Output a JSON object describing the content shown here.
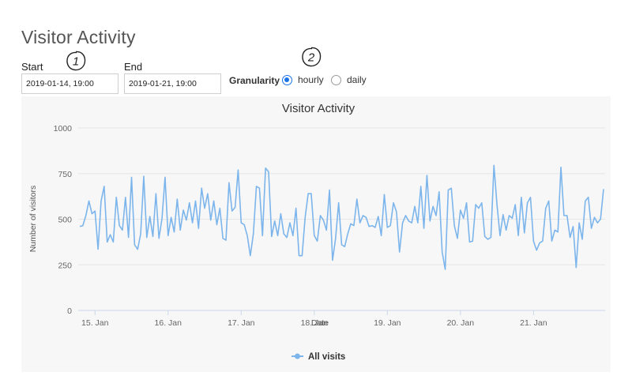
{
  "page": {
    "title": "Visitor Activity"
  },
  "controls": {
    "start_label": "Start",
    "start_value": "2019-01-14, 19:00",
    "end_label": "End",
    "end_value": "2019-01-21, 19:00",
    "granularity_label": "Granularity",
    "options": [
      {
        "label": "hourly",
        "checked": true
      },
      {
        "label": "daily",
        "checked": false
      }
    ],
    "callouts": [
      "1",
      "2"
    ]
  },
  "colors": {
    "series": "#7cb5ec",
    "grid": "#e6e6e6",
    "radio_accent": "#1a73e8"
  },
  "chart_data": {
    "type": "line",
    "title": "Visitor Activity",
    "xlabel": "Date",
    "ylabel": "Number of visitors",
    "ylim": [
      0,
      1000
    ],
    "yticks": [
      0,
      250,
      500,
      750,
      1000
    ],
    "xticks": [
      "15. Jan",
      "16. Jan",
      "17. Jan",
      "18. Jan",
      "19. Jan",
      "20. Jan",
      "21. Jan"
    ],
    "grid": true,
    "legend": "bottom-center",
    "series": [
      {
        "name": "All visits",
        "color": "#7cb5ec",
        "values": [
          460,
          465,
          520,
          600,
          530,
          545,
          335,
          600,
          680,
          375,
          415,
          375,
          620,
          465,
          440,
          620,
          400,
          730,
          360,
          335,
          420,
          735,
          400,
          515,
          405,
          640,
          395,
          505,
          730,
          410,
          510,
          430,
          610,
          440,
          550,
          495,
          590,
          480,
          600,
          450,
          670,
          560,
          640,
          495,
          600,
          470,
          560,
          395,
          385,
          700,
          545,
          565,
          770,
          480,
          470,
          410,
          300,
          420,
          680,
          670,
          410,
          780,
          760,
          405,
          490,
          410,
          530,
          420,
          400,
          480,
          410,
          560,
          300,
          300,
          510,
          640,
          640,
          410,
          380,
          520,
          495,
          440,
          660,
          275,
          395,
          590,
          360,
          350,
          420,
          475,
          465,
          610,
          480,
          520,
          510,
          460,
          465,
          455,
          515,
          410,
          635,
          455,
          465,
          590,
          540,
          320,
          480,
          520,
          490,
          480,
          570,
          480,
          680,
          450,
          740,
          490,
          570,
          520,
          650,
          320,
          225,
          660,
          670,
          465,
          395,
          550,
          505,
          590,
          375,
          380,
          580,
          560,
          590,
          405,
          390,
          400,
          795,
          580,
          410,
          525,
          440,
          520,
          505,
          580,
          410,
          620,
          425,
          590,
          620,
          380,
          330,
          370,
          380,
          560,
          600,
          380,
          440,
          430,
          785,
          520,
          520,
          400,
          460,
          235,
          480,
          390,
          600,
          620,
          450,
          510,
          480,
          500,
          665
        ]
      }
    ]
  }
}
